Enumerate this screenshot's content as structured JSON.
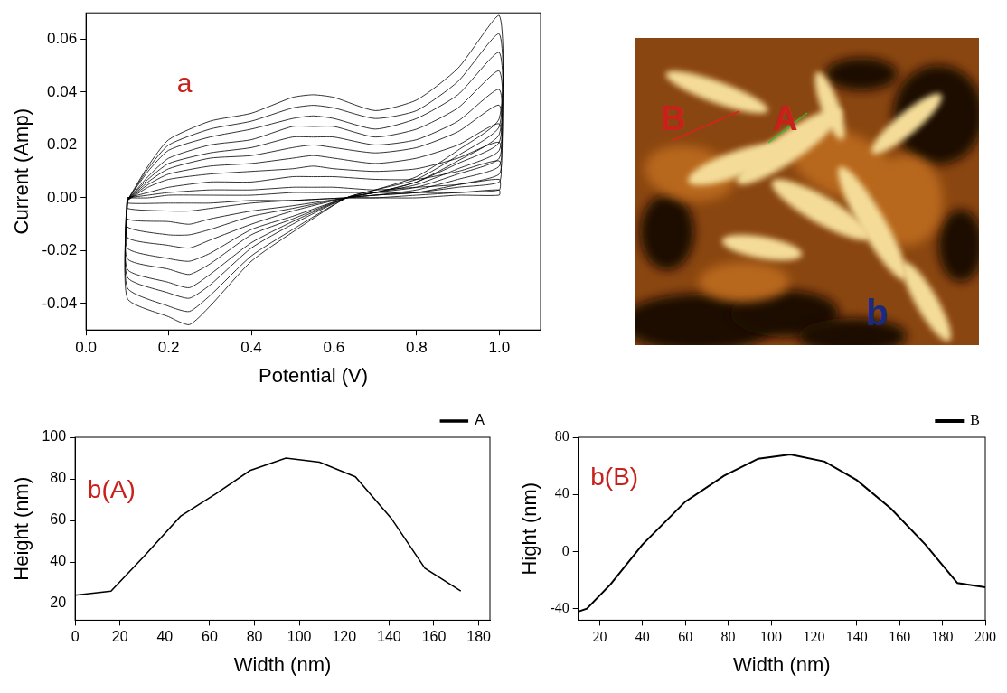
{
  "chart_data": [
    {
      "type": "line",
      "annotations": [
        "a"
      ],
      "x_label": "Potential (V)",
      "y_label": "Current (Amp)",
      "x": [
        0.1,
        0.15,
        0.2,
        0.3,
        0.4,
        0.5,
        0.55,
        0.6,
        0.7,
        0.8,
        0.9,
        1.0,
        1.0,
        0.9,
        0.8,
        0.7,
        0.63,
        0.5,
        0.4,
        0.3,
        0.25,
        0.2,
        0.1,
        0.1
      ],
      "color": "#000000",
      "series": [
        {
          "values": [
            -0.001,
            0.012,
            0.022,
            0.029,
            0.032,
            0.038,
            0.039,
            0.038,
            0.033,
            0.037,
            0.049,
            0.069,
            0.03,
            0.018,
            0.008,
            0.003,
            0.0,
            -0.013,
            -0.024,
            -0.041,
            -0.048,
            -0.045,
            -0.038,
            -0.001
          ]
        },
        {
          "values": [
            -0.001,
            0.011,
            0.02,
            0.026,
            0.029,
            0.034,
            0.035,
            0.034,
            0.03,
            0.033,
            0.044,
            0.062,
            0.027,
            0.016,
            0.007,
            0.003,
            0.0,
            -0.012,
            -0.022,
            -0.037,
            -0.043,
            -0.041,
            -0.034,
            -0.001
          ]
        },
        {
          "values": [
            -0.001,
            0.01,
            0.018,
            0.023,
            0.026,
            0.03,
            0.031,
            0.03,
            0.026,
            0.03,
            0.039,
            0.055,
            0.024,
            0.014,
            0.006,
            0.002,
            0.0,
            -0.01,
            -0.019,
            -0.033,
            -0.038,
            -0.036,
            -0.03,
            -0.001
          ]
        },
        {
          "values": [
            -0.001,
            0.008,
            0.015,
            0.02,
            0.022,
            0.027,
            0.027,
            0.027,
            0.023,
            0.026,
            0.034,
            0.048,
            0.021,
            0.013,
            0.006,
            0.002,
            0.0,
            -0.009,
            -0.017,
            -0.029,
            -0.034,
            -0.032,
            -0.027,
            -0.001
          ]
        },
        {
          "values": [
            -0.001,
            0.007,
            0.013,
            0.017,
            0.019,
            0.023,
            0.023,
            0.023,
            0.02,
            0.022,
            0.029,
            0.041,
            0.018,
            0.011,
            0.005,
            0.002,
            0.0,
            -0.008,
            -0.014,
            -0.025,
            -0.029,
            -0.027,
            -0.023,
            -0.001
          ]
        },
        {
          "values": [
            -0.001,
            0.006,
            0.011,
            0.015,
            0.016,
            0.019,
            0.02,
            0.019,
            0.017,
            0.019,
            0.025,
            0.035,
            0.015,
            0.009,
            0.004,
            0.002,
            0.0,
            -0.007,
            -0.012,
            -0.021,
            -0.024,
            -0.023,
            -0.019,
            -0.001
          ]
        },
        {
          "values": [
            -0.001,
            0.005,
            0.009,
            0.012,
            0.013,
            0.015,
            0.016,
            0.015,
            0.013,
            0.015,
            0.02,
            0.028,
            0.012,
            0.007,
            0.003,
            0.001,
            0.0,
            -0.005,
            -0.01,
            -0.016,
            -0.019,
            -0.018,
            -0.015,
            -0.001
          ]
        },
        {
          "values": [
            -0.001,
            0.004,
            0.007,
            0.009,
            0.01,
            0.011,
            0.012,
            0.011,
            0.01,
            0.011,
            0.015,
            0.021,
            0.009,
            0.005,
            0.002,
            0.001,
            0.0,
            -0.004,
            -0.007,
            -0.012,
            -0.014,
            -0.014,
            -0.011,
            -0.001
          ]
        },
        {
          "values": [
            0.0,
            0.002,
            0.004,
            0.006,
            0.006,
            0.008,
            0.008,
            0.008,
            0.007,
            0.007,
            0.01,
            0.014,
            0.006,
            0.004,
            0.002,
            0.001,
            0.0,
            -0.003,
            -0.005,
            -0.008,
            -0.01,
            -0.009,
            -0.008,
            0.0
          ]
        },
        {
          "values": [
            0.0,
            0.001,
            0.002,
            0.003,
            0.003,
            0.004,
            0.004,
            0.004,
            0.003,
            0.004,
            0.005,
            0.007,
            0.003,
            0.002,
            0.001,
            0.0,
            0.0,
            -0.001,
            -0.002,
            -0.004,
            -0.005,
            -0.005,
            -0.004,
            0.0
          ]
        },
        {
          "values": [
            0.0,
            0.0,
            0.001,
            0.001,
            0.001,
            0.002,
            0.002,
            0.002,
            0.002,
            0.002,
            0.002,
            0.003,
            0.001,
            0.001,
            0.0,
            0.0,
            0.0,
            -0.001,
            -0.001,
            -0.002,
            -0.002,
            -0.002,
            -0.002,
            0.0
          ]
        }
      ],
      "xlim": [
        0,
        1.1
      ],
      "xticks": [
        {
          "value": 0,
          "label": "0.0"
        },
        0.2,
        0.4,
        0.6,
        0.8,
        {
          "value": 1,
          "label": "1.0"
        }
      ],
      "ylim": [
        -0.05,
        0.07
      ],
      "yticks": [
        -0.04,
        -0.02,
        {
          "value": 0,
          "label": "0.00"
        },
        0.02,
        0.04,
        0.06
      ],
      "grid": false
    },
    {
      "type": "line",
      "annotations": [
        "b(A)"
      ],
      "x_label": "Width (nm)",
      "y_label": "Height (nm)",
      "x": [
        0,
        16,
        31,
        47,
        63,
        78,
        94,
        109,
        125,
        141,
        156,
        172
      ],
      "series": [
        {
          "name": "A",
          "color": "#000000",
          "values": [
            24,
            26,
            43,
            62,
            73,
            84,
            90,
            88,
            81,
            61,
            37,
            26
          ]
        }
      ],
      "xlim": [
        0,
        185
      ],
      "xticks": [
        0,
        20,
        40,
        60,
        80,
        100,
        120,
        140,
        160,
        180
      ],
      "ylim": [
        12,
        100
      ],
      "yticks": [
        20,
        40,
        60,
        80,
        100
      ],
      "grid": false,
      "legend": "top-right"
    },
    {
      "type": "line",
      "annotations": [
        "b(B)"
      ],
      "x_label": "Width (nm)",
      "y_label": "Hight (nm)",
      "x": [
        10,
        14,
        25,
        40,
        60,
        78,
        94,
        109,
        125,
        140,
        156,
        172,
        187,
        200
      ],
      "series": [
        {
          "name": "B",
          "color": "#000000",
          "values": [
            -42,
            -40,
            -23,
            5,
            35,
            53,
            65,
            68,
            63,
            50,
            30,
            5,
            -22,
            -25
          ]
        }
      ],
      "xlim": [
        10,
        200
      ],
      "xticks": [
        20,
        40,
        60,
        80,
        100,
        120,
        140,
        160,
        180,
        200
      ],
      "ylim": [
        -48,
        80
      ],
      "yticks": [
        -40,
        0,
        40,
        80
      ],
      "grid": false,
      "legend": "top-right"
    }
  ],
  "image": {
    "panel_label": "b",
    "profile_labels": [
      "A",
      "B"
    ]
  }
}
